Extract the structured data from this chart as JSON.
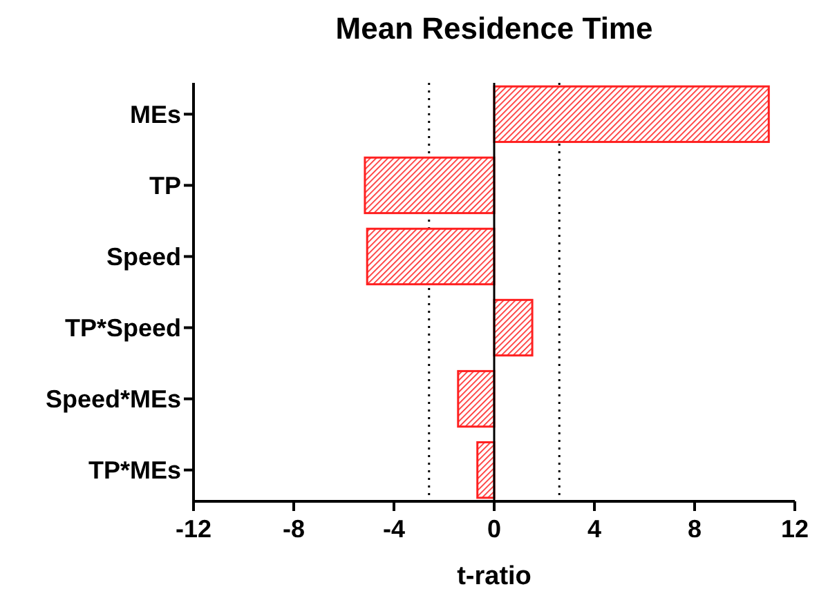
{
  "chart_data": {
    "type": "bar",
    "orientation": "horizontal",
    "title": "Mean Residence Time",
    "xlabel": "t-ratio",
    "categories": [
      "MEs",
      "TP",
      "Speed",
      "TP*Speed",
      "Speed*MEs",
      "TP*MEs"
    ],
    "values": [
      10.96,
      -5.16,
      -5.07,
      1.52,
      -1.44,
      -0.67
    ],
    "color": "#ff2020",
    "xlim": [
      -12,
      12
    ],
    "xticks": [
      -12,
      -8,
      -4,
      0,
      4,
      8,
      12
    ],
    "ref_lines": [
      {
        "axis": "x",
        "value": -2.6,
        "line_style": "dotted"
      },
      {
        "axis": "x",
        "value": 2.6,
        "line_style": "dotted"
      }
    ]
  }
}
